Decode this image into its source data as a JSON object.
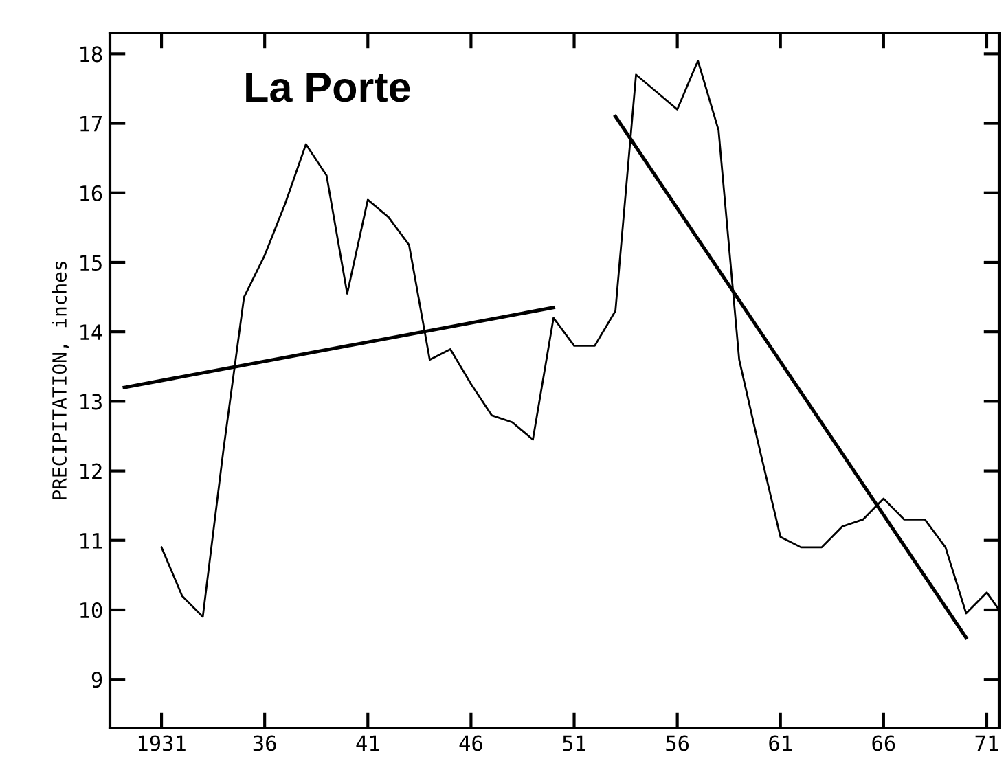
{
  "chart_data": {
    "type": "line",
    "title": "La Porte",
    "ylabel": "PRECIPITATION, inches",
    "xlim": [
      1928.5,
      1971.6
    ],
    "ylim": [
      8.3,
      18.3
    ],
    "xticks": [
      {
        "value": 1931,
        "label": "1931"
      },
      {
        "value": 1936,
        "label": "36"
      },
      {
        "value": 1941,
        "label": "41"
      },
      {
        "value": 1946,
        "label": "46"
      },
      {
        "value": 1951,
        "label": "51"
      },
      {
        "value": 1956,
        "label": "56"
      },
      {
        "value": 1961,
        "label": "61"
      },
      {
        "value": 1966,
        "label": "66"
      },
      {
        "value": 1971,
        "label": "71"
      }
    ],
    "yticks": [
      9,
      10,
      11,
      12,
      13,
      14,
      15,
      16,
      17,
      18
    ],
    "grid": false,
    "marker": "none",
    "line_style": "solid",
    "series": [
      {
        "color": "#000000",
        "x": [
          1931,
          1932,
          1933,
          1934,
          1935,
          1936,
          1937,
          1938,
          1939,
          1940,
          1941,
          1942,
          1943,
          1944,
          1945,
          1946,
          1947,
          1948,
          1949,
          1950,
          1951,
          1952,
          1953,
          1954,
          1955,
          1956,
          1957,
          1958,
          1959,
          1960,
          1961,
          1962,
          1963,
          1964,
          1965,
          1966,
          1967,
          1968,
          1969,
          1970,
          1971,
          1971.6
        ],
        "values": [
          10.9,
          10.2,
          9.9,
          12.3,
          14.5,
          15.1,
          15.85,
          16.7,
          16.25,
          14.55,
          15.9,
          15.65,
          15.25,
          13.6,
          13.75,
          13.25,
          12.8,
          12.7,
          12.45,
          14.2,
          13.8,
          13.8,
          14.3,
          17.7,
          17.45,
          17.2,
          17.9,
          16.9,
          13.6,
          12.3,
          11.05,
          10.9,
          10.9,
          11.2,
          11.3,
          11.6,
          11.3,
          11.3,
          10.9,
          9.95,
          10.25,
          10.0
        ]
      },
      {
        "type": "line",
        "color": "#000000",
        "x": [
          1929.2,
          1950
        ],
        "values": [
          13.2,
          14.35
        ]
      },
      {
        "type": "line",
        "color": "#000000",
        "x": [
          1953,
          1970
        ],
        "values": [
          17.1,
          9.6
        ]
      }
    ]
  }
}
